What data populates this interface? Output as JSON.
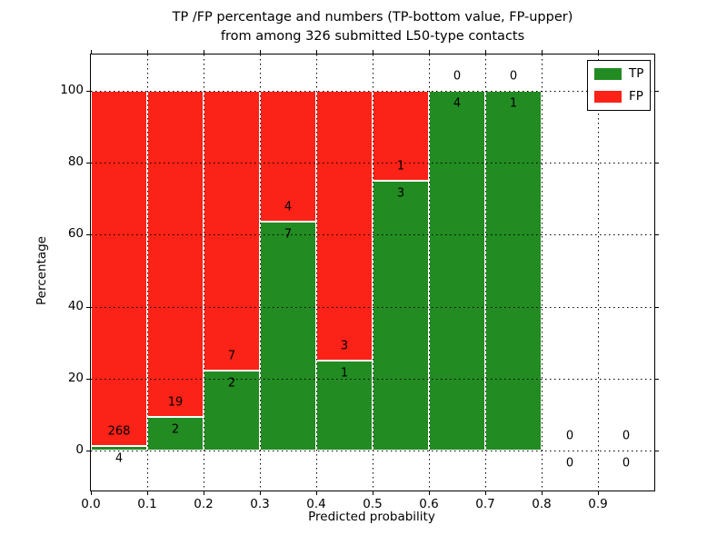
{
  "chart_data": {
    "type": "bar",
    "variant": "stacked-percentage-histogram",
    "title_line1": "TP /FP percentage and numbers (TP-bottom value, FP-upper)",
    "title_line2": "from among 326 submitted L50-type contacts",
    "xlabel": "Predicted probability",
    "ylabel": "Percentage",
    "xlim": [
      0.0,
      1.0
    ],
    "ylim": [
      -11,
      110
    ],
    "grid": "dotted",
    "legend_position": "upper-right",
    "bin_width": 0.1,
    "bin_starts": [
      0.0,
      0.1,
      0.2,
      0.3,
      0.4,
      0.5,
      0.6,
      0.7,
      0.8,
      0.9
    ],
    "xtick_labels": [
      "0.0",
      "0.1",
      "0.2",
      "0.3",
      "0.4",
      "0.5",
      "0.6",
      "0.7",
      "0.8",
      "0.9"
    ],
    "ytick_values": [
      0,
      20,
      40,
      60,
      80,
      100
    ],
    "series": [
      {
        "name": "TP",
        "color": "#228b22",
        "counts": [
          4,
          2,
          2,
          7,
          1,
          3,
          4,
          1,
          0,
          0
        ]
      },
      {
        "name": "FP",
        "color": "#fb2217",
        "counts": [
          268,
          19,
          7,
          4,
          3,
          1,
          0,
          0,
          0,
          0
        ]
      }
    ],
    "tp_percent_by_bin": [
      1.47,
      9.52,
      22.22,
      63.64,
      25.0,
      75.0,
      100.0,
      100.0,
      null,
      null
    ],
    "total_contacts": 326,
    "legend": {
      "entries": [
        {
          "label": "TP",
          "color": "#228b22"
        },
        {
          "label": "FP",
          "color": "#fb2217"
        }
      ]
    }
  }
}
